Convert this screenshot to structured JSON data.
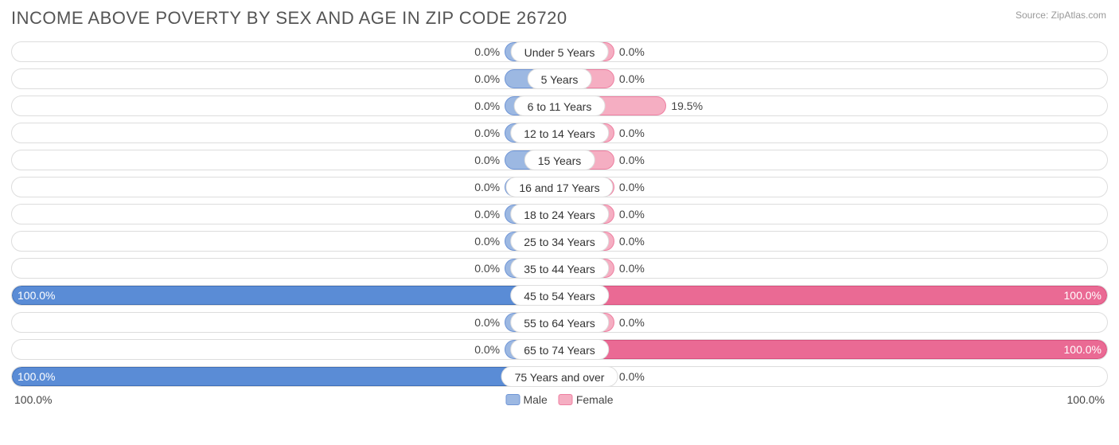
{
  "title": "INCOME ABOVE POVERTY BY SEX AND AGE IN ZIP CODE 26720",
  "source": "Source: ZipAtlas.com",
  "chart": {
    "type": "diverging-bar-horizontal",
    "background_color": "#ffffff",
    "row_border_color": "#dddddd",
    "text_color": "#444444",
    "title_color": "#555555",
    "title_fontsize": 22,
    "label_fontsize": 14,
    "min_bar_pct": 10.0,
    "series": {
      "male": {
        "label": "Male",
        "fill": "#9cb8e2",
        "border": "#6f95d6",
        "full_fill": "#5a8cd6",
        "full_border": "#3f6fb8"
      },
      "female": {
        "label": "Female",
        "fill": "#f5aec2",
        "border": "#ee7fa1",
        "full_fill": "#ea6a94",
        "full_border": "#d94f7d"
      }
    },
    "categories": [
      {
        "label": "Under 5 Years",
        "male": 0.0,
        "female": 0.0
      },
      {
        "label": "5 Years",
        "male": 0.0,
        "female": 0.0
      },
      {
        "label": "6 to 11 Years",
        "male": 0.0,
        "female": 19.5
      },
      {
        "label": "12 to 14 Years",
        "male": 0.0,
        "female": 0.0
      },
      {
        "label": "15 Years",
        "male": 0.0,
        "female": 0.0
      },
      {
        "label": "16 and 17 Years",
        "male": 0.0,
        "female": 0.0
      },
      {
        "label": "18 to 24 Years",
        "male": 0.0,
        "female": 0.0
      },
      {
        "label": "25 to 34 Years",
        "male": 0.0,
        "female": 0.0
      },
      {
        "label": "35 to 44 Years",
        "male": 0.0,
        "female": 0.0
      },
      {
        "label": "45 to 54 Years",
        "male": 100.0,
        "female": 100.0
      },
      {
        "label": "55 to 64 Years",
        "male": 0.0,
        "female": 0.0
      },
      {
        "label": "65 to 74 Years",
        "male": 0.0,
        "female": 100.0
      },
      {
        "label": "75 Years and over",
        "male": 100.0,
        "female": 0.0
      }
    ],
    "axis": {
      "left": "100.0%",
      "right": "100.0%"
    }
  }
}
